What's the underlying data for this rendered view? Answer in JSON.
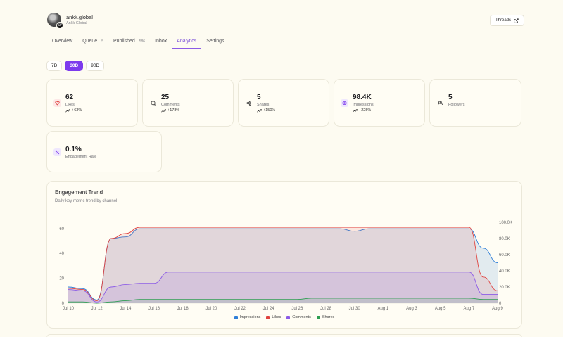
{
  "profile": {
    "name": "ankk.global",
    "subtitle": "Ankk Global"
  },
  "header": {
    "threads_label": "Threads"
  },
  "tabs": [
    {
      "label": "Overview",
      "count": ""
    },
    {
      "label": "Queue",
      "count": "5"
    },
    {
      "label": "Published",
      "count": "586"
    },
    {
      "label": "Inbox",
      "count": ""
    },
    {
      "label": "Analytics",
      "count": "",
      "active": true
    },
    {
      "label": "Settings",
      "count": ""
    }
  ],
  "range": {
    "options": [
      "7D",
      "30D",
      "90D"
    ],
    "selected": "30D"
  },
  "metrics": [
    {
      "value": "62",
      "label": "Likes",
      "change": "+63%",
      "icon": "heart-icon",
      "color": "#e0433f"
    },
    {
      "value": "25",
      "label": "Comments",
      "change": "+178%",
      "icon": "comment-icon",
      "color": "#333333"
    },
    {
      "value": "5",
      "label": "Shares",
      "change": "+150%",
      "icon": "share-icon",
      "color": "#333333"
    },
    {
      "value": "98.4K",
      "label": "Impressions",
      "change": "+225%",
      "icon": "eye-icon",
      "color": "#7c3aed"
    },
    {
      "value": "5",
      "label": "Followers",
      "change": "",
      "icon": "users-icon",
      "color": "#333333"
    },
    {
      "value": "0.1%",
      "label": "Engagement Rate",
      "change": "",
      "icon": "percent-icon",
      "color": "#7c3aed"
    }
  ],
  "chart": {
    "title": "Engagement Trend",
    "subtitle": "Daily key metric trend by channel",
    "legend": [
      {
        "name": "Impressions",
        "color": "#2f7fd8"
      },
      {
        "name": "Likes",
        "color": "#e0433f"
      },
      {
        "name": "Comments",
        "color": "#8c5ce6"
      },
      {
        "name": "Shares",
        "color": "#2e9e52"
      }
    ]
  },
  "chart_data": {
    "type": "area",
    "x": [
      "Jul 10",
      "Jul 11",
      "Jul 12",
      "Jul 13",
      "Jul 14",
      "Jul 15",
      "Jul 16",
      "Jul 17",
      "Jul 18",
      "Jul 19",
      "Jul 20",
      "Jul 21",
      "Jul 22",
      "Jul 23",
      "Jul 24",
      "Jul 25",
      "Jul 26",
      "Jul 27",
      "Jul 28",
      "Jul 29",
      "Jul 30",
      "Jul 31",
      "Aug 1",
      "Aug 2",
      "Aug 3",
      "Aug 4",
      "Aug 5",
      "Aug 6",
      "Aug 7",
      "Aug 8",
      "Aug 9"
    ],
    "x_tick_labels": [
      "Jul 10",
      "Jul 12",
      "Jul 14",
      "Jul 16",
      "Jul 18",
      "Jul 20",
      "Jul 22",
      "Jul 24",
      "Jul 26",
      "Jul 28",
      "Jul 30",
      "Aug 1",
      "Aug 3",
      "Aug 5",
      "Aug 7",
      "Aug 9"
    ],
    "y_left": {
      "range": [
        0,
        65
      ],
      "ticks": [
        "0",
        "20",
        "40",
        "60"
      ]
    },
    "y_right": {
      "range": [
        0,
        100000
      ],
      "ticks": [
        "0",
        "20.0K",
        "40.0K",
        "60.0K",
        "80.0K",
        "100.0K"
      ]
    },
    "series": [
      {
        "name": "Impressions",
        "axis": "right",
        "values": [
          20000,
          18000,
          4000,
          80000,
          82000,
          92000,
          92000,
          92000,
          92000,
          92000,
          92000,
          92000,
          92000,
          92000,
          92000,
          92000,
          92000,
          92000,
          92000,
          92000,
          89000,
          92000,
          92000,
          92000,
          92000,
          92000,
          92000,
          92000,
          92000,
          68000,
          50000
        ]
      },
      {
        "name": "Likes",
        "axis": "left",
        "values": [
          12,
          11,
          2,
          52,
          56,
          61,
          61,
          61,
          61,
          61,
          61,
          61,
          61,
          61,
          61,
          61,
          61,
          61,
          61,
          61,
          61,
          61,
          61,
          61,
          61,
          61,
          61,
          61,
          61,
          21,
          10
        ]
      },
      {
        "name": "Comments",
        "axis": "left",
        "values": [
          11,
          10,
          1,
          13,
          15,
          16,
          16,
          25,
          25,
          25,
          25,
          25,
          25,
          25,
          25,
          25,
          25,
          25,
          25,
          25,
          25,
          25,
          25,
          25,
          25,
          25,
          25,
          25,
          25,
          7,
          7
        ]
      },
      {
        "name": "Shares",
        "axis": "left",
        "values": [
          1,
          1,
          0,
          1,
          2,
          3,
          3,
          3,
          3,
          3,
          3,
          3,
          3,
          3,
          3,
          3,
          3,
          4,
          4,
          4,
          4,
          4,
          4,
          4,
          4,
          4,
          4,
          4,
          4,
          3,
          3
        ]
      }
    ]
  }
}
